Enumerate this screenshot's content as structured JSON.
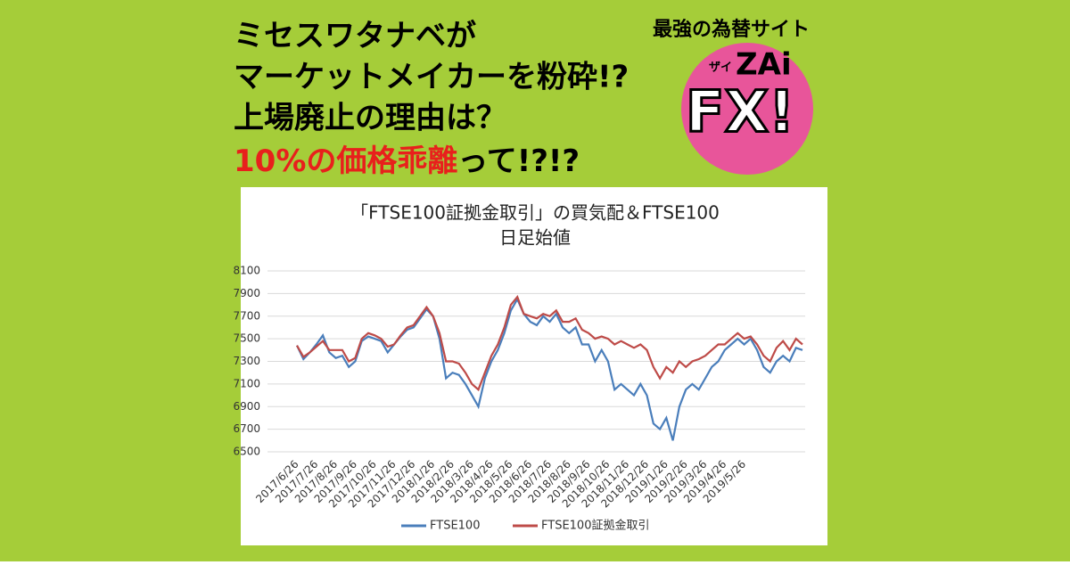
{
  "headline": {
    "lines": [
      "ミセスワタナベが",
      "マーケットメイカーを粉砕!?",
      "上場廃止の理由は？"
    ],
    "last_red": "10%の価格乖離",
    "last_black": "って!?!?"
  },
  "logo": {
    "tagline": "最強の為替サイト",
    "brand_small": "ザイ",
    "brand": "ZAi",
    "big": "FX!"
  },
  "chart_data": {
    "type": "line",
    "title": [
      "「FTSE100証拠金取引」の買気配＆FTSE100",
      "日足始値"
    ],
    "categories": [
      "2017/6/26",
      null,
      null,
      "2017/7/26",
      null,
      null,
      "2017/8/26",
      null,
      null,
      "2017/9/26",
      null,
      null,
      "2017/10/26",
      null,
      null,
      "2017/11/26",
      null,
      null,
      "2017/12/26",
      null,
      null,
      "2018/1/26",
      null,
      null,
      "2018/2/26",
      null,
      null,
      "2018/3/26",
      null,
      null,
      "2018/4/26",
      null,
      null,
      "2018/5/26",
      null,
      null,
      "2018/6/26",
      null,
      null,
      "2018/7/26",
      null,
      null,
      "2018/8/26",
      null,
      null,
      "2018/9/26",
      null,
      null,
      "2018/10/26",
      null,
      null,
      "2018/11/26",
      null,
      null,
      "2018/12/26",
      null,
      null,
      "2019/1/26",
      null,
      null,
      "2019/2/26",
      null,
      null,
      "2019/3/26",
      null,
      null,
      "2019/4/26",
      null,
      null,
      "2019/5/26",
      null,
      null,
      null,
      null,
      null,
      null,
      null,
      null,
      null
    ],
    "series": [
      {
        "name": "FTSE100",
        "color": "#4a7ebb",
        "values": [
          7440,
          7320,
          7380,
          7450,
          7530,
          7380,
          7330,
          7350,
          7250,
          7300,
          7480,
          7520,
          7500,
          7480,
          7380,
          7450,
          7520,
          7580,
          7600,
          7680,
          7760,
          7700,
          7500,
          7150,
          7200,
          7180,
          7100,
          7000,
          6900,
          7150,
          7300,
          7400,
          7550,
          7750,
          7850,
          7720,
          7650,
          7620,
          7700,
          7650,
          7720,
          7600,
          7550,
          7600,
          7450,
          7450,
          7300,
          7400,
          7300,
          7050,
          7100,
          7050,
          7000,
          7100,
          7000,
          6750,
          6700,
          6800,
          6600,
          6900,
          7050,
          7100,
          7050,
          7150,
          7250,
          7300,
          7400,
          7450,
          7500,
          7450,
          7500,
          7400,
          7250,
          7200,
          7300,
          7350,
          7300,
          7420,
          7400
        ]
      },
      {
        "name": "FTSE100証拠金取引",
        "color": "#be4b48",
        "values": [
          7440,
          7340,
          7380,
          7430,
          7480,
          7400,
          7400,
          7400,
          7300,
          7330,
          7500,
          7550,
          7530,
          7500,
          7430,
          7450,
          7530,
          7600,
          7620,
          7700,
          7780,
          7700,
          7550,
          7300,
          7300,
          7280,
          7200,
          7100,
          7050,
          7200,
          7350,
          7450,
          7600,
          7800,
          7870,
          7720,
          7700,
          7680,
          7720,
          7700,
          7750,
          7650,
          7650,
          7680,
          7580,
          7550,
          7500,
          7520,
          7500,
          7450,
          7480,
          7450,
          7420,
          7450,
          7400,
          7250,
          7150,
          7250,
          7200,
          7300,
          7250,
          7300,
          7320,
          7350,
          7400,
          7450,
          7450,
          7500,
          7550,
          7500,
          7520,
          7450,
          7350,
          7300,
          7420,
          7480,
          7400,
          7500,
          7450
        ]
      }
    ],
    "ylim": [
      6500,
      8100
    ],
    "yticks": [
      6500,
      6700,
      6900,
      7100,
      7300,
      7500,
      7700,
      7900,
      8100
    ],
    "grid": true
  }
}
